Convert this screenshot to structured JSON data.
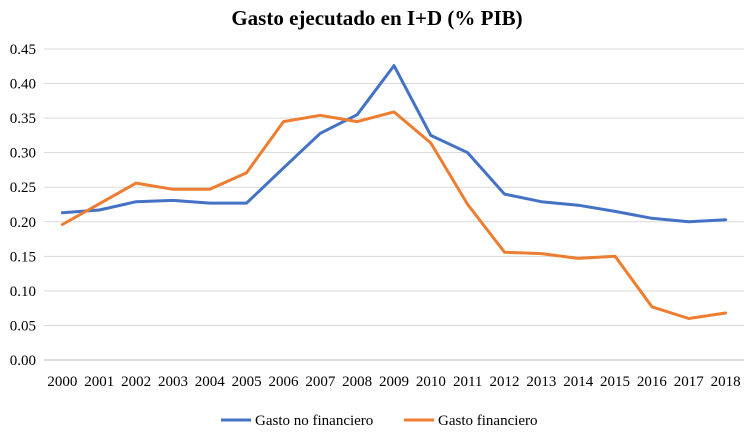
{
  "chart_data": {
    "type": "line",
    "title": "Gasto ejecutado en I+D (% PIB)",
    "xlabel": "",
    "ylabel": "",
    "categories": [
      "2000",
      "2001",
      "2002",
      "2003",
      "2004",
      "2005",
      "2006",
      "2007",
      "2008",
      "2009",
      "2010",
      "2011",
      "2012",
      "2013",
      "2014",
      "2015",
      "2016",
      "2017",
      "2018"
    ],
    "ylim": [
      0,
      0.45
    ],
    "yticks": [
      "0.00",
      "0.05",
      "0.10",
      "0.15",
      "0.20",
      "0.25",
      "0.30",
      "0.35",
      "0.40",
      "0.45"
    ],
    "grid": "horizontal",
    "legend": "bottom",
    "series": [
      {
        "name": "Gasto no financiero",
        "color": "#4472C4",
        "values": [
          0.213,
          0.217,
          0.229,
          0.231,
          0.227,
          0.227,
          0.278,
          0.328,
          0.355,
          0.426,
          0.325,
          0.3,
          0.24,
          0.229,
          0.224,
          0.215,
          0.205,
          0.2,
          0.203
        ]
      },
      {
        "name": "Gasto financiero",
        "color": "#ED7D31",
        "values": [
          0.196,
          0.226,
          0.256,
          0.247,
          0.247,
          0.271,
          0.345,
          0.354,
          0.345,
          0.359,
          0.314,
          0.225,
          0.156,
          0.154,
          0.147,
          0.15,
          0.077,
          0.06,
          0.068
        ]
      }
    ]
  }
}
